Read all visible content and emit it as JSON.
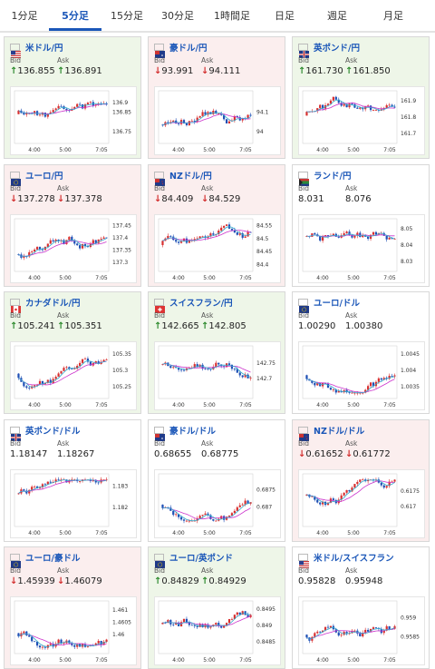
{
  "tabs": [
    {
      "label": "1分足",
      "active": false
    },
    {
      "label": "5分足",
      "active": true
    },
    {
      "label": "15分足",
      "active": false
    },
    {
      "label": "30分足",
      "active": false
    },
    {
      "label": "1時間足",
      "active": false
    },
    {
      "label": "日足",
      "active": false
    },
    {
      "label": "週足",
      "active": false
    },
    {
      "label": "月足",
      "active": false
    }
  ],
  "labels": {
    "bid": "Bid",
    "ask": "Ask"
  },
  "cards": [
    {
      "name": "米ドル/円",
      "trend": "up",
      "bid": "136.855",
      "ask": "136.891",
      "flag": "us",
      "chart_data": {
        "type": "candlestick",
        "x_ticks": [
          "4:00",
          "5:00",
          "7:05"
        ],
        "y_ticks": [
          "136.9",
          "136.85",
          "136.75"
        ],
        "ylim": [
          136.7,
          136.95
        ]
      }
    },
    {
      "name": "豪ドル/円",
      "trend": "down",
      "bid": "93.991",
      "ask": "94.111",
      "flag": "au",
      "chart_data": {
        "type": "candlestick",
        "x_ticks": [
          "4:00",
          "5:00",
          "7:05"
        ],
        "y_ticks": [
          "94.1",
          "94"
        ],
        "ylim": [
          93.95,
          94.2
        ]
      }
    },
    {
      "name": "英ポンド/円",
      "trend": "up",
      "bid": "161.730",
      "ask": "161.850",
      "flag": "gb",
      "chart_data": {
        "type": "candlestick",
        "x_ticks": [
          "4:00",
          "5:00",
          "7:05"
        ],
        "y_ticks": [
          "161.9",
          "161.8",
          "161.7"
        ],
        "ylim": [
          161.65,
          161.95
        ]
      }
    },
    {
      "name": "ユーロ/円",
      "trend": "down",
      "bid": "137.278",
      "ask": "137.378",
      "flag": "eu",
      "chart_data": {
        "type": "candlestick",
        "x_ticks": [
          "4:00",
          "5:00",
          "7:05"
        ],
        "y_ticks": [
          "137.45",
          "137.4",
          "137.35",
          "137.3"
        ],
        "ylim": [
          137.27,
          137.47
        ]
      }
    },
    {
      "name": "NZドル/円",
      "trend": "down",
      "bid": "84.409",
      "ask": "84.529",
      "flag": "nz",
      "chart_data": {
        "type": "candlestick",
        "x_ticks": [
          "4:00",
          "5:00",
          "7:05"
        ],
        "y_ticks": [
          "84.55",
          "84.5",
          "84.45",
          "84.4"
        ],
        "ylim": [
          84.38,
          84.57
        ]
      }
    },
    {
      "name": "ランド/円",
      "trend": "flat",
      "bid": "8.031",
      "ask": "8.076",
      "flag": "za",
      "chart_data": {
        "type": "candlestick",
        "x_ticks": [
          "4:00",
          "5:00",
          "7:05"
        ],
        "y_ticks": [
          "8.05",
          "8.04",
          "8.03"
        ],
        "ylim": [
          8.025,
          8.055
        ]
      }
    },
    {
      "name": "カナダドル/円",
      "trend": "up",
      "bid": "105.241",
      "ask": "105.351",
      "flag": "ca",
      "chart_data": {
        "type": "candlestick",
        "x_ticks": [
          "4:00",
          "5:00",
          "7:05"
        ],
        "y_ticks": [
          "105.35",
          "105.3",
          "105.25"
        ],
        "ylim": [
          105.22,
          105.37
        ]
      }
    },
    {
      "name": "スイスフラン/円",
      "trend": "up",
      "bid": "142.665",
      "ask": "142.805",
      "flag": "ch",
      "chart_data": {
        "type": "candlestick",
        "x_ticks": [
          "4:00",
          "5:00",
          "7:05"
        ],
        "y_ticks": [
          "142.75",
          "142.7"
        ],
        "ylim": [
          142.64,
          142.8
        ]
      }
    },
    {
      "name": "ユーロ/ドル",
      "trend": "flat",
      "bid": "1.00290",
      "ask": "1.00380",
      "flag": "eu",
      "chart_data": {
        "type": "candlestick",
        "x_ticks": [
          "4:00",
          "5:00",
          "7:05"
        ],
        "y_ticks": [
          "1.0045",
          "1.004",
          "1.0035"
        ],
        "ylim": [
          1.0032,
          1.0047
        ]
      }
    },
    {
      "name": "英ポンド/ドル",
      "trend": "flat",
      "bid": "1.18147",
      "ask": "1.18267",
      "flag": "gb",
      "chart_data": {
        "type": "candlestick",
        "x_ticks": [
          "4:00",
          "5:00",
          "7:05"
        ],
        "y_ticks": [
          "1.183",
          "1.182"
        ],
        "ylim": [
          1.1812,
          1.1835
        ]
      }
    },
    {
      "name": "豪ドル/ドル",
      "trend": "flat",
      "bid": "0.68655",
      "ask": "0.68775",
      "flag": "au",
      "chart_data": {
        "type": "candlestick",
        "x_ticks": [
          "4:00",
          "5:00",
          "7:05"
        ],
        "y_ticks": [
          "0.6875",
          "0.687"
        ],
        "ylim": [
          0.6865,
          0.6879
        ]
      }
    },
    {
      "name": "NZドル/ドル",
      "trend": "down",
      "bid": "0.61652",
      "ask": "0.61772",
      "flag": "nz",
      "chart_data": {
        "type": "candlestick",
        "x_ticks": [
          "4:00",
          "5:00",
          "7:05"
        ],
        "y_ticks": [
          "0.6175",
          "0.617"
        ],
        "ylim": [
          0.6164,
          0.618
        ]
      }
    },
    {
      "name": "ユーロ/豪ドル",
      "trend": "down",
      "bid": "1.45939",
      "ask": "1.46079",
      "flag": "eu",
      "chart_data": {
        "type": "candlestick",
        "x_ticks": [
          "4:00",
          "5:00",
          "7:05"
        ],
        "y_ticks": [
          "1.461",
          "1.4605",
          "1.46"
        ],
        "ylim": [
          1.4593,
          1.4613
        ]
      }
    },
    {
      "name": "ユーロ/英ポンド",
      "trend": "up",
      "bid": "0.84829",
      "ask": "0.84929",
      "flag": "eu",
      "chart_data": {
        "type": "candlestick",
        "x_ticks": [
          "4:00",
          "5:00",
          "7:05"
        ],
        "y_ticks": [
          "0.8495",
          "0.849",
          "0.8485"
        ],
        "ylim": [
          0.8482,
          0.8497
        ]
      }
    },
    {
      "name": "米ドル/スイスフラン",
      "trend": "flat",
      "bid": "0.95828",
      "ask": "0.95948",
      "flag": "us",
      "chart_data": {
        "type": "candlestick",
        "x_ticks": [
          "4:00",
          "5:00",
          "7:05"
        ],
        "y_ticks": [
          "0.959",
          "0.9585"
        ],
        "ylim": [
          0.9581,
          0.9594
        ]
      }
    }
  ]
}
